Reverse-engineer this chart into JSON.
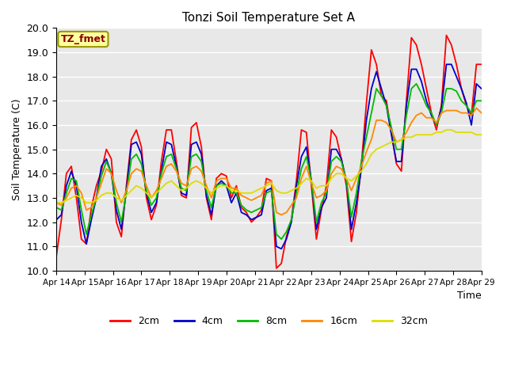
{
  "title": "Tonzi Soil Temperature Set A",
  "xlabel": "Time",
  "ylabel": "Soil Temperature (C)",
  "ylim": [
    10.0,
    20.0
  ],
  "yticks": [
    10.0,
    11.0,
    12.0,
    13.0,
    14.0,
    15.0,
    16.0,
    17.0,
    18.0,
    19.0,
    20.0
  ],
  "annotation": "TZ_fmet",
  "legend_labels": [
    "2cm",
    "4cm",
    "8cm",
    "16cm",
    "32cm"
  ],
  "legend_colors": [
    "#ff0000",
    "#0000cc",
    "#00bb00",
    "#ff8800",
    "#dddd00"
  ],
  "background_color": "#e8e8e8",
  "x_tick_labels": [
    "Apr 14",
    "Apr 15",
    "Apr 16",
    "Apr 17",
    "Apr 18",
    "Apr 19",
    "Apr 20",
    "Apr 21",
    "Apr 22",
    "Apr 23",
    "Apr 24",
    "Apr 25",
    "Apr 26",
    "Apr 27",
    "Apr 28",
    "Apr 29"
  ],
  "data_2cm": [
    10.6,
    12.1,
    14.0,
    14.3,
    13.0,
    11.3,
    11.1,
    12.6,
    13.5,
    14.1,
    15.0,
    14.6,
    12.0,
    11.4,
    13.5,
    15.4,
    15.8,
    15.1,
    13.0,
    12.1,
    12.7,
    14.5,
    15.8,
    15.8,
    14.5,
    13.1,
    13.0,
    15.9,
    16.1,
    15.1,
    13.0,
    12.1,
    13.8,
    14.0,
    13.9,
    13.0,
    13.5,
    12.6,
    12.4,
    12.0,
    12.2,
    12.5,
    13.8,
    13.7,
    10.1,
    10.3,
    11.4,
    12.1,
    13.7,
    15.8,
    15.7,
    13.5,
    11.3,
    12.5,
    13.5,
    15.8,
    15.5,
    14.6,
    13.5,
    11.2,
    12.4,
    14.4,
    16.9,
    19.1,
    18.5,
    17.2,
    17.0,
    15.7,
    14.4,
    14.1,
    17.0,
    19.6,
    19.3,
    18.5,
    17.5,
    16.5,
    15.8,
    16.8,
    19.7,
    19.3,
    18.5,
    17.5,
    16.8,
    16.4,
    18.5,
    18.5
  ],
  "data_4cm": [
    12.1,
    12.3,
    13.5,
    14.1,
    13.5,
    12.0,
    11.1,
    12.1,
    13.0,
    14.3,
    14.6,
    14.0,
    12.5,
    11.7,
    13.3,
    15.2,
    15.3,
    14.8,
    13.2,
    12.4,
    12.8,
    14.1,
    15.3,
    15.2,
    14.3,
    13.2,
    13.1,
    15.2,
    15.3,
    14.8,
    13.1,
    12.3,
    13.5,
    13.7,
    13.5,
    12.8,
    13.2,
    12.4,
    12.3,
    12.1,
    12.2,
    12.3,
    13.3,
    13.4,
    11.0,
    10.9,
    11.3,
    12.0,
    13.5,
    14.7,
    15.1,
    13.7,
    11.7,
    12.6,
    13.0,
    15.0,
    15.0,
    14.6,
    13.7,
    11.7,
    12.8,
    14.2,
    16.2,
    17.5,
    18.2,
    17.5,
    16.8,
    15.6,
    14.5,
    14.5,
    16.8,
    18.3,
    18.3,
    17.8,
    17.0,
    16.4,
    16.0,
    16.7,
    18.5,
    18.5,
    18.0,
    17.5,
    16.9,
    16.0,
    17.7,
    17.5
  ],
  "data_8cm": [
    12.6,
    12.5,
    13.2,
    13.8,
    13.7,
    12.5,
    11.5,
    12.3,
    13.0,
    13.9,
    14.5,
    14.0,
    12.8,
    12.0,
    13.2,
    14.6,
    14.8,
    14.4,
    13.3,
    12.7,
    13.0,
    14.0,
    14.7,
    14.8,
    14.2,
    13.4,
    13.3,
    14.7,
    14.8,
    14.5,
    13.3,
    12.6,
    13.5,
    13.6,
    13.5,
    13.2,
    13.2,
    12.7,
    12.5,
    12.4,
    12.5,
    12.6,
    13.2,
    13.3,
    11.5,
    11.3,
    11.6,
    12.1,
    13.2,
    14.2,
    14.7,
    13.7,
    12.0,
    12.8,
    13.2,
    14.5,
    14.7,
    14.5,
    13.7,
    12.2,
    13.2,
    14.5,
    15.5,
    16.5,
    17.5,
    17.2,
    16.8,
    15.9,
    15.0,
    15.0,
    16.4,
    17.5,
    17.7,
    17.3,
    16.8,
    16.5,
    16.0,
    16.5,
    17.5,
    17.5,
    17.4,
    17.0,
    16.8,
    16.5,
    17.0,
    17.0
  ],
  "data_16cm": [
    12.8,
    12.7,
    13.0,
    13.4,
    13.5,
    13.2,
    12.5,
    12.6,
    13.0,
    13.6,
    14.2,
    14.0,
    13.3,
    12.8,
    13.3,
    14.0,
    14.2,
    14.1,
    13.5,
    13.0,
    13.3,
    13.8,
    14.3,
    14.4,
    14.1,
    13.6,
    13.5,
    14.2,
    14.3,
    14.1,
    13.5,
    13.0,
    13.7,
    13.8,
    13.8,
    13.4,
    13.4,
    13.1,
    13.0,
    12.9,
    13.0,
    13.1,
    13.6,
    13.7,
    12.4,
    12.3,
    12.4,
    12.7,
    13.0,
    13.8,
    14.3,
    13.6,
    13.0,
    13.1,
    13.3,
    14.0,
    14.3,
    14.2,
    13.8,
    13.3,
    13.8,
    14.3,
    14.9,
    15.4,
    16.2,
    16.2,
    16.1,
    15.8,
    15.3,
    15.4,
    15.7,
    16.1,
    16.4,
    16.5,
    16.3,
    16.3,
    16.1,
    16.5,
    16.6,
    16.6,
    16.6,
    16.5,
    16.5,
    16.4,
    16.7,
    16.5
  ],
  "data_32cm": [
    12.8,
    12.8,
    12.9,
    13.0,
    13.1,
    13.0,
    12.8,
    12.8,
    12.9,
    13.1,
    13.2,
    13.2,
    13.0,
    12.9,
    13.1,
    13.3,
    13.5,
    13.4,
    13.2,
    13.0,
    13.2,
    13.4,
    13.6,
    13.7,
    13.5,
    13.3,
    13.4,
    13.6,
    13.7,
    13.6,
    13.4,
    13.2,
    13.4,
    13.5,
    13.5,
    13.3,
    13.3,
    13.2,
    13.2,
    13.2,
    13.3,
    13.4,
    13.5,
    13.6,
    13.3,
    13.2,
    13.2,
    13.3,
    13.4,
    13.6,
    13.8,
    13.7,
    13.4,
    13.5,
    13.5,
    13.8,
    14.0,
    14.0,
    13.8,
    13.7,
    13.9,
    14.1,
    14.4,
    14.8,
    15.0,
    15.1,
    15.2,
    15.3,
    15.3,
    15.4,
    15.5,
    15.5,
    15.6,
    15.6,
    15.6,
    15.6,
    15.7,
    15.7,
    15.8,
    15.8,
    15.7,
    15.7,
    15.7,
    15.7,
    15.6,
    15.6
  ]
}
